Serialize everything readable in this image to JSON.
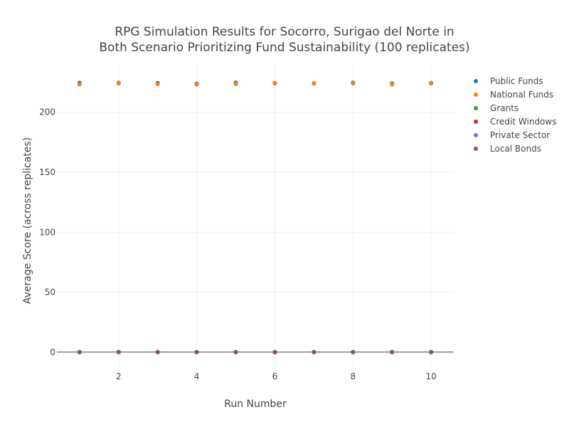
{
  "chart_data": {
    "type": "scatter",
    "title_lines": [
      "RPG Simulation Results for Socorro, Surigao del Norte in",
      "Both Scenario Prioritizing Fund Sustainability (100 replicates)"
    ],
    "xlabel": "Run Number",
    "ylabel": "Average Score (across replicates)",
    "xlim": [
      0.42,
      10.58
    ],
    "ylim": [
      -12,
      239
    ],
    "x_ticks": [
      2,
      4,
      6,
      8,
      10
    ],
    "y_ticks": [
      0,
      50,
      100,
      150,
      200
    ],
    "grid": true,
    "legend_position": "right",
    "x": [
      1,
      2,
      3,
      4,
      5,
      6,
      7,
      8,
      9,
      10
    ],
    "series": [
      {
        "name": "Public Funds",
        "color": "#1f77b4",
        "values": [
          224.5,
          224.5,
          224.4,
          223.7,
          224.6,
          224.3,
          224.0,
          224.6,
          224.0,
          224.4
        ]
      },
      {
        "name": "National Funds",
        "color": "#ff7f0e",
        "values": [
          223.2,
          224.0,
          223.5,
          223.1,
          223.6,
          224.0,
          224.0,
          224.0,
          223.3,
          224.0
        ]
      },
      {
        "name": "Grants",
        "color": "#2ca02c",
        "values": [
          0,
          0,
          0,
          0,
          0,
          0,
          0,
          0,
          0,
          0
        ]
      },
      {
        "name": "Credit Windows",
        "color": "#d62728",
        "values": [
          0,
          0,
          0,
          0,
          0,
          0,
          0,
          0,
          0,
          0
        ]
      },
      {
        "name": "Private Sector",
        "color": "#9467bd",
        "values": [
          0,
          0,
          0,
          0,
          0,
          0,
          0,
          0,
          0,
          0
        ]
      },
      {
        "name": "Local Bonds",
        "color": "#8c564b",
        "values": [
          0,
          0,
          0,
          0,
          0,
          0,
          0,
          0,
          0,
          0
        ]
      }
    ]
  }
}
